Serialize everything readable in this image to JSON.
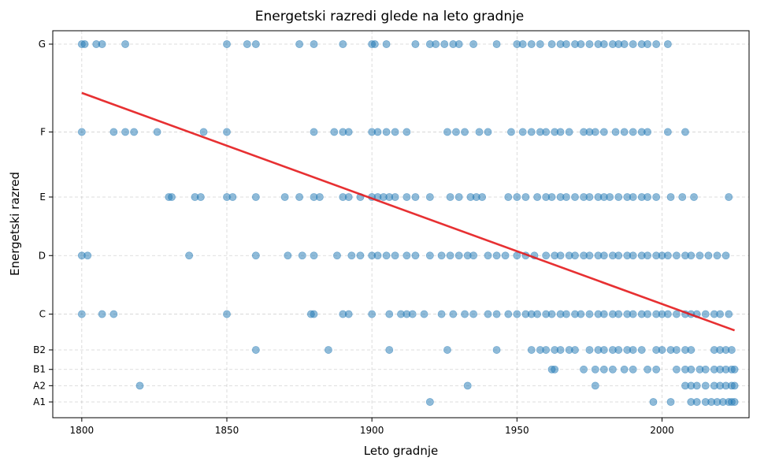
{
  "chart_data": {
    "type": "scatter",
    "title": "Energetski razredi glede na leto gradnje",
    "xlabel": "Leto gradnje",
    "ylabel": "Energetski razred",
    "xlim": [
      1790,
      2030
    ],
    "ylim": [
      0.5,
      11.1
    ],
    "grid": true,
    "x_ticks": [
      1800,
      1850,
      1900,
      1950,
      2000
    ],
    "y_categories": [
      {
        "label": "A1",
        "value": 1.0
      },
      {
        "label": "A2",
        "value": 1.5
      },
      {
        "label": "B1",
        "value": 2.0
      },
      {
        "label": "B2",
        "value": 2.6
      },
      {
        "label": "C",
        "value": 3.7
      },
      {
        "label": "D",
        "value": 5.5
      },
      {
        "label": "E",
        "value": 7.3
      },
      {
        "label": "F",
        "value": 9.3
      },
      {
        "label": "G",
        "value": 12.0
      }
    ],
    "point_color": "#1f77b4",
    "line_color": "#e41a1c",
    "trend_line": {
      "x": [
        1800,
        2025
      ],
      "y": [
        10.5,
        3.2
      ]
    },
    "points": [
      {
        "class": "G",
        "years": [
          1800,
          1801,
          1805,
          1807,
          1815,
          1850,
          1857,
          1860,
          1875,
          1880,
          1890,
          1900,
          1901,
          1905,
          1915,
          1920,
          1922,
          1925,
          1928,
          1930,
          1935,
          1943,
          1950,
          1952,
          1955,
          1958,
          1962,
          1965,
          1967,
          1970,
          1972,
          1975,
          1978,
          1980,
          1983,
          1985,
          1987,
          1990,
          1993,
          1995,
          1998,
          2002
        ]
      },
      {
        "class": "F",
        "years": [
          1800,
          1811,
          1815,
          1818,
          1826,
          1842,
          1850,
          1880,
          1887,
          1890,
          1892,
          1900,
          1902,
          1905,
          1908,
          1912,
          1926,
          1929,
          1932,
          1937,
          1940,
          1948,
          1952,
          1955,
          1958,
          1960,
          1963,
          1965,
          1968,
          1973,
          1975,
          1977,
          1980,
          1984,
          1987,
          1990,
          1993,
          1995,
          2002,
          2008
        ]
      },
      {
        "class": "E",
        "years": [
          1830,
          1831,
          1839,
          1841,
          1850,
          1852,
          1860,
          1870,
          1875,
          1880,
          1882,
          1890,
          1892,
          1896,
          1900,
          1902,
          1904,
          1906,
          1908,
          1912,
          1915,
          1920,
          1927,
          1930,
          1934,
          1936,
          1938,
          1947,
          1950,
          1953,
          1957,
          1960,
          1962,
          1965,
          1967,
          1970,
          1973,
          1975,
          1978,
          1980,
          1982,
          1985,
          1988,
          1990,
          1993,
          1995,
          1998,
          2003,
          2007,
          2011,
          2023
        ]
      },
      {
        "class": "D",
        "years": [
          1800,
          1802,
          1837,
          1860,
          1871,
          1876,
          1880,
          1888,
          1893,
          1896,
          1900,
          1902,
          1905,
          1908,
          1912,
          1915,
          1920,
          1924,
          1927,
          1930,
          1933,
          1935,
          1940,
          1943,
          1946,
          1950,
          1953,
          1956,
          1960,
          1963,
          1965,
          1968,
          1970,
          1973,
          1975,
          1978,
          1980,
          1983,
          1985,
          1988,
          1990,
          1993,
          1995,
          1998,
          2000,
          2002,
          2005,
          2008,
          2010,
          2013,
          2016,
          2019,
          2022
        ]
      },
      {
        "class": "C",
        "years": [
          1800,
          1807,
          1811,
          1850,
          1879,
          1880,
          1890,
          1892,
          1900,
          1906,
          1910,
          1912,
          1914,
          1918,
          1924,
          1928,
          1932,
          1935,
          1940,
          1943,
          1947,
          1950,
          1953,
          1955,
          1957,
          1960,
          1962,
          1965,
          1967,
          1970,
          1972,
          1975,
          1978,
          1980,
          1983,
          1985,
          1988,
          1990,
          1993,
          1995,
          1998,
          2000,
          2002,
          2005,
          2008,
          2010,
          2012,
          2015,
          2018,
          2020,
          2023
        ]
      },
      {
        "class": "B2",
        "years": [
          1860,
          1885,
          1906,
          1926,
          1943,
          1955,
          1958,
          1960,
          1963,
          1965,
          1968,
          1970,
          1975,
          1978,
          1980,
          1983,
          1985,
          1988,
          1990,
          1993,
          1998,
          2000,
          2003,
          2005,
          2008,
          2010,
          2018,
          2020,
          2022,
          2024
        ]
      },
      {
        "class": "B1",
        "years": [
          1962,
          1963,
          1973,
          1977,
          1980,
          1983,
          1987,
          1990,
          1995,
          1998,
          2005,
          2008,
          2010,
          2013,
          2015,
          2018,
          2020,
          2022,
          2024,
          2025
        ]
      },
      {
        "class": "A2",
        "years": [
          1820,
          1933,
          1977,
          2008,
          2010,
          2012,
          2015,
          2018,
          2020,
          2022,
          2024,
          2025
        ]
      },
      {
        "class": "A1",
        "years": [
          1920,
          1997,
          2003,
          2010,
          2012,
          2015,
          2017,
          2019,
          2021,
          2023,
          2024,
          2025
        ]
      }
    ]
  }
}
